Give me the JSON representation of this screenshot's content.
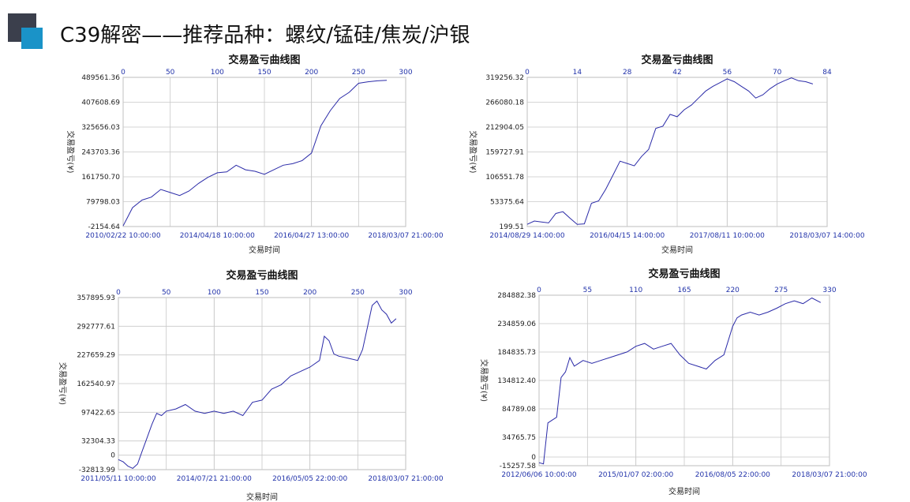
{
  "header": {
    "title": "C39解密——推荐品种：螺纹/锰硅/焦炭/沪银"
  },
  "colors": {
    "accent_blue": "#1a93c8",
    "dark_block": "#3b3f4c",
    "series": "#2b2ba8",
    "axis_text": "#2233aa"
  },
  "chart_data": [
    {
      "type": "line",
      "title": "交易盈亏曲线图",
      "xlabel": "交易时间",
      "ylabel": "交易盈亏(¥)",
      "ylim": [
        -2154.64,
        489561.36
      ],
      "y_ticks": [
        "489561.36",
        "407608.69",
        "325656.03",
        "243703.36",
        "161750.70",
        "79798.03",
        "-2154.64"
      ],
      "top_ticks": [
        "0",
        "50",
        "100",
        "150",
        "200",
        "250",
        "300"
      ],
      "top_range": [
        0,
        300
      ],
      "x_date_ticks": [
        "2010/02/22 10:00:00",
        "2014/04/18 10:00:00",
        "2016/04/27 13:00:00",
        "2018/03/07 21:00:00"
      ],
      "series": [
        {
          "x": [
            0,
            5,
            10,
            20,
            30,
            40,
            50,
            60,
            70,
            80,
            90,
            100,
            110,
            120,
            130,
            140,
            150,
            160,
            170,
            180,
            190,
            200,
            210,
            220,
            230,
            240,
            250,
            260,
            270,
            280
          ],
          "values": [
            0,
            30000,
            60000,
            85000,
            95000,
            120000,
            110000,
            100000,
            115000,
            140000,
            160000,
            175000,
            178000,
            200000,
            185000,
            180000,
            170000,
            185000,
            200000,
            205000,
            215000,
            240000,
            330000,
            380000,
            420000,
            440000,
            470000,
            475000,
            478000,
            480000
          ]
        }
      ]
    },
    {
      "type": "line",
      "title": "交易盈亏曲线图",
      "xlabel": "交易时间",
      "ylabel": "交易盈亏(¥)",
      "ylim": [
        199.51,
        319256.32
      ],
      "y_ticks": [
        "319256.32",
        "266080.18",
        "212904.05",
        "159727.91",
        "106551.78",
        "53375.64",
        "199.51"
      ],
      "top_ticks": [
        "0",
        "14",
        "28",
        "42",
        "56",
        "70",
        "84"
      ],
      "top_range": [
        0,
        84
      ],
      "x_date_ticks": [
        "2014/08/29 14:00:00",
        "2016/04/15 14:00:00",
        "2017/08/11 10:00:00",
        "2018/03/07 14:00:00"
      ],
      "series": [
        {
          "x": [
            0,
            2,
            4,
            6,
            8,
            10,
            12,
            14,
            16,
            18,
            20,
            22,
            24,
            26,
            28,
            30,
            32,
            34,
            36,
            38,
            40,
            42,
            44,
            46,
            48,
            50,
            52,
            54,
            56,
            58,
            60,
            62,
            64,
            66,
            68,
            70,
            72,
            74,
            76,
            78,
            80
          ],
          "values": [
            5000,
            12000,
            10000,
            8000,
            28000,
            32000,
            18000,
            5000,
            6000,
            50000,
            55000,
            80000,
            110000,
            140000,
            135000,
            130000,
            150000,
            165000,
            210000,
            215000,
            240000,
            235000,
            250000,
            260000,
            275000,
            290000,
            300000,
            308000,
            316000,
            310000,
            300000,
            290000,
            275000,
            282000,
            295000,
            305000,
            312000,
            318000,
            312000,
            310000,
            305000
          ]
        }
      ]
    },
    {
      "type": "line",
      "title": "交易盈亏曲线图",
      "xlabel": "交易时间",
      "ylabel": "交易盈亏(¥)",
      "ylim": [
        -32813.99,
        357895.93
      ],
      "y_ticks": [
        "357895.93",
        "292777.61",
        "227659.29",
        "162540.97",
        "97422.65",
        "32304.33",
        "0",
        "-32813.99"
      ],
      "top_ticks": [
        "0",
        "50",
        "100",
        "150",
        "200",
        "250",
        "300"
      ],
      "top_range": [
        0,
        300
      ],
      "x_date_ticks": [
        "2011/05/11 10:00:00",
        "2014/07/21 21:00:00",
        "2016/05/05 22:00:00",
        "2018/03/07 21:00:00"
      ],
      "series": [
        {
          "x": [
            0,
            5,
            10,
            15,
            20,
            25,
            30,
            35,
            40,
            45,
            50,
            60,
            70,
            80,
            90,
            100,
            110,
            120,
            130,
            140,
            150,
            160,
            170,
            180,
            190,
            200,
            210,
            215,
            220,
            225,
            230,
            240,
            250,
            255,
            260,
            265,
            270,
            275,
            280,
            285,
            290
          ],
          "values": [
            -10000,
            -15000,
            -25000,
            -30000,
            -20000,
            10000,
            40000,
            70000,
            95000,
            90000,
            100000,
            105000,
            115000,
            100000,
            95000,
            100000,
            95000,
            100000,
            90000,
            120000,
            125000,
            150000,
            160000,
            180000,
            190000,
            200000,
            215000,
            270000,
            260000,
            230000,
            225000,
            220000,
            215000,
            240000,
            290000,
            340000,
            350000,
            330000,
            320000,
            300000,
            310000
          ]
        }
      ]
    },
    {
      "type": "line",
      "title": "交易盈亏曲线图",
      "xlabel": "交易时间",
      "ylabel": "交易盈亏(¥)",
      "ylim": [
        -15257.58,
        284882.38
      ],
      "y_ticks": [
        "284882.38",
        "234859.06",
        "184835.73",
        "134812.40",
        "84789.08",
        "34765.75",
        "0",
        "-15257.58"
      ],
      "top_ticks": [
        "0",
        "55",
        "110",
        "165",
        "220",
        "275",
        "330"
      ],
      "top_range": [
        0,
        330
      ],
      "x_date_ticks": [
        "2012/06/06 10:00:00",
        "2015/01/07 02:00:00",
        "2016/08/05 22:00:00",
        "2018/03/07 21:00:00"
      ],
      "series": [
        {
          "x": [
            0,
            5,
            10,
            15,
            20,
            25,
            30,
            35,
            40,
            45,
            50,
            60,
            70,
            80,
            90,
            100,
            110,
            120,
            130,
            140,
            150,
            160,
            170,
            180,
            190,
            200,
            210,
            220,
            225,
            230,
            240,
            250,
            260,
            270,
            280,
            290,
            300,
            310,
            320
          ],
          "values": [
            -10000,
            -12000,
            60000,
            65000,
            70000,
            140000,
            150000,
            175000,
            160000,
            165000,
            170000,
            165000,
            170000,
            175000,
            180000,
            185000,
            195000,
            200000,
            190000,
            195000,
            200000,
            180000,
            165000,
            160000,
            155000,
            170000,
            180000,
            230000,
            245000,
            250000,
            255000,
            250000,
            255000,
            262000,
            270000,
            275000,
            270000,
            280000,
            272000
          ]
        }
      ]
    }
  ]
}
